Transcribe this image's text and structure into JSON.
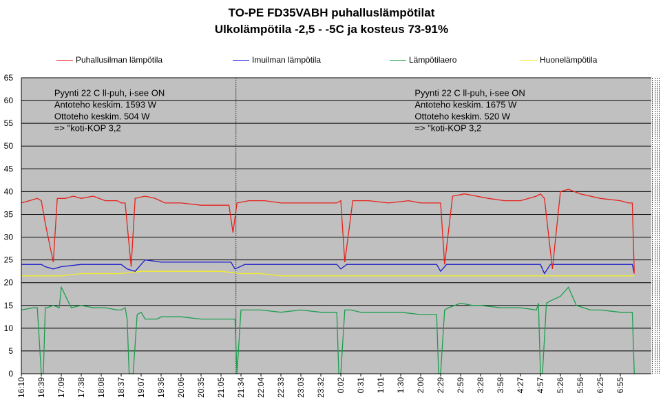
{
  "chart_data": {
    "type": "line",
    "title": "TO-PE FD35VABH puhalluslämpötilat",
    "subtitle": "Ulkolämpötila -2,5 - -5C ja kosteus 73-91%",
    "xlabel": "",
    "ylabel": "",
    "ylim": [
      0,
      65
    ],
    "yticks": [
      0,
      5,
      10,
      15,
      20,
      25,
      30,
      35,
      40,
      45,
      50,
      55,
      60,
      65
    ],
    "x_categories": [
      "16:10",
      "16:39",
      "17:09",
      "17:38",
      "18:08",
      "18:37",
      "19:07",
      "19:36",
      "20:06",
      "20:35",
      "21:05",
      "21:34",
      "22:04",
      "22:33",
      "23:03",
      "23:32",
      "0:02",
      "0:31",
      "1:01",
      "1:30",
      "2:00",
      "2:29",
      "2:59",
      "3:28",
      "3:58",
      "4:27",
      "4:57",
      "5:26",
      "5:56",
      "6:25",
      "6:55"
    ],
    "legend": [
      {
        "name": "Puhallusilman lämpötila",
        "color": "#e8201a"
      },
      {
        "name": "Imuilman lämpötila",
        "color": "#1a1acc"
      },
      {
        "name": "Lämpötilaero",
        "color": "#1c9e4e"
      },
      {
        "name": "Huonelämpötila",
        "color": "#f2ee2a"
      }
    ],
    "series": [
      {
        "name": "Puhallusilman lämpötila",
        "x": [
          0,
          0.4,
          0.8,
          1.0,
          1.2,
          1.6,
          1.8,
          2.2,
          2.6,
          3.0,
          3.6,
          4.2,
          4.8,
          5.0,
          5.2,
          5.5,
          5.7,
          6.2,
          6.7,
          7.2,
          8,
          9,
          10,
          10.4,
          10.6,
          10.8,
          11.4,
          12.2,
          13,
          14,
          15,
          15.8,
          16.0,
          16.2,
          16.6,
          17.4,
          18.4,
          19.4,
          20,
          20.8,
          21.0,
          21.2,
          21.6,
          22.2,
          22.8,
          23.4,
          24.2,
          25,
          25.8,
          26.0,
          26.2,
          26.6,
          27.0,
          27.4,
          28.0,
          29,
          30,
          30.4,
          30.6,
          30.7
        ],
        "values": [
          37.5,
          38,
          38.5,
          38,
          33,
          24.5,
          38.5,
          38.5,
          39,
          38.5,
          39,
          38,
          38,
          37.5,
          37.5,
          23.5,
          38.5,
          39,
          38.5,
          37.5,
          37.5,
          37,
          37,
          37,
          31,
          37.5,
          38,
          38,
          37.5,
          37.5,
          37.5,
          37.5,
          38,
          24.5,
          38,
          38,
          37.5,
          38,
          37.5,
          37.5,
          37.5,
          24,
          39,
          39.5,
          39,
          38.5,
          38,
          38,
          39,
          39.5,
          38.5,
          23,
          40,
          40.5,
          39.5,
          38.5,
          38,
          37.5,
          37.5,
          22
        ]
      },
      {
        "name": "Imuilman lämpötila",
        "x": [
          0,
          1.0,
          1.2,
          1.6,
          2,
          3,
          4,
          5.0,
          5.3,
          5.7,
          6.0,
          6.2,
          7,
          8,
          9,
          10,
          10.5,
          10.7,
          11.2,
          12,
          14,
          15.5,
          15.8,
          16.0,
          16.3,
          17,
          19,
          20.5,
          20.8,
          21.0,
          21.3,
          22,
          24,
          25.7,
          26.0,
          26.2,
          26.5,
          27.5,
          29,
          30.3,
          30.6,
          30.7
        ],
        "values": [
          24,
          24,
          23.5,
          23,
          23.5,
          24,
          24,
          24,
          23,
          22.5,
          24,
          25,
          24.5,
          24.5,
          24.5,
          24.5,
          24.5,
          23,
          24,
          24,
          24,
          24,
          24,
          23,
          24,
          24,
          24,
          24,
          24,
          22.5,
          24,
          24,
          24,
          24,
          24,
          22,
          24,
          24,
          24,
          24,
          24,
          22
        ]
      },
      {
        "name": "Lämpötilaero",
        "x": [
          0,
          0.6,
          0.8,
          1.0,
          1.1,
          1.2,
          1.3,
          1.6,
          1.9,
          2.0,
          2.5,
          3,
          3.6,
          4.2,
          4.8,
          5.0,
          5.2,
          5.3,
          5.4,
          5.6,
          5.8,
          6.0,
          6.2,
          6.8,
          7,
          8,
          9,
          10,
          10.4,
          10.6,
          10.7,
          10.8,
          11.0,
          11.5,
          12,
          13,
          14,
          15,
          15.8,
          15.9,
          16.0,
          16.2,
          16.5,
          17,
          18,
          19,
          20,
          20.8,
          20.9,
          21.0,
          21.2,
          21.4,
          22,
          22.6,
          23,
          24,
          25,
          25.8,
          25.9,
          26.0,
          26.1,
          26.3,
          26.5,
          27.0,
          27.4,
          27.8,
          28.5,
          29,
          30,
          30.4,
          30.6,
          30.7
        ],
        "values": [
          14,
          14.5,
          14.5,
          0,
          0,
          14.5,
          14.5,
          15,
          14.5,
          19,
          14.5,
          15,
          14.5,
          14.5,
          14,
          14,
          14.5,
          12,
          0,
          0,
          13,
          13.5,
          12,
          12,
          12.5,
          12.5,
          12,
          12,
          12,
          12,
          12,
          0,
          14,
          14,
          14,
          13.5,
          14,
          13.5,
          13.5,
          0,
          0,
          14,
          14,
          13.5,
          13.5,
          13.5,
          13,
          13,
          0,
          0,
          14,
          14.5,
          15.5,
          15,
          15,
          14.5,
          14.5,
          14,
          15.5,
          0,
          0,
          15.5,
          16,
          17,
          19,
          15,
          14,
          14,
          13.5,
          13.5,
          13.5,
          0
        ]
      },
      {
        "name": "Huonelämpötila",
        "x": [
          0,
          1,
          2,
          3,
          4,
          5,
          6,
          7,
          8,
          9,
          10,
          11,
          12,
          13,
          14,
          15,
          16,
          17,
          18,
          19,
          20,
          21,
          22,
          23,
          24,
          25,
          26,
          27,
          28,
          29,
          30,
          30.7
        ],
        "values": [
          21.5,
          21.5,
          21.5,
          22,
          22,
          22,
          22.5,
          22.5,
          22.5,
          22.5,
          22.5,
          22,
          22,
          21.5,
          21.5,
          21.5,
          21.5,
          21.5,
          21.5,
          21.5,
          21.5,
          21.5,
          21.5,
          21.5,
          21.5,
          21.5,
          21.5,
          21.5,
          21.5,
          21.5,
          21.5,
          21.5
        ]
      }
    ],
    "annotations": [
      {
        "lines": [
          "Pyynti 22 C ll-puh,  i-see ON",
          "Antoteho keskim. 1593 W",
          "Ottoteho keskim. 504 W",
          "=> \"koti-KOP 3,2"
        ],
        "x": 1.65,
        "y": 61
      },
      {
        "lines": [
          "Pyynti 22 C ll-puh,  i-see ON",
          "Antoteho keskim. 1675 W",
          "Ottoteho keskim. 520 W",
          "=> \"koti-KOP 3,2"
        ],
        "x": 19.7,
        "y": 61
      }
    ],
    "dividers_x": [
      10.75,
      31.6,
      31.75,
      31.85,
      31.95
    ],
    "grid": true,
    "legend_position": "top"
  }
}
